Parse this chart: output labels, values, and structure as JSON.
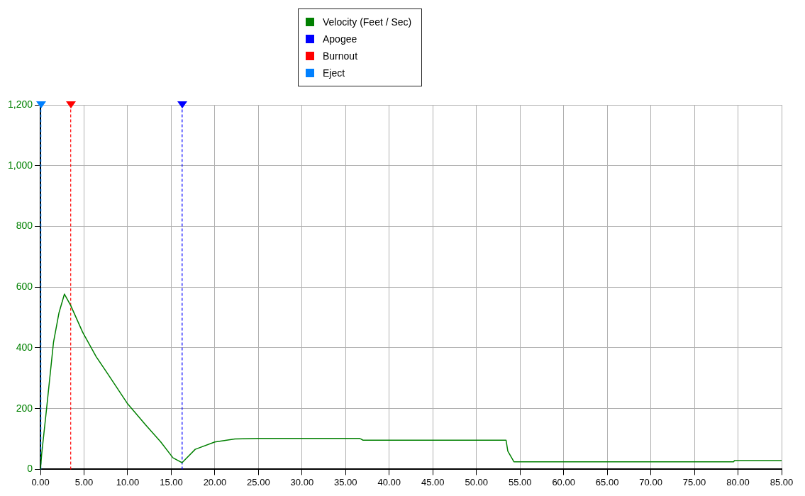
{
  "chart_data": {
    "type": "line",
    "xlim": [
      0,
      85
    ],
    "xticks": [
      {
        "value": 0,
        "label": "0.00"
      },
      {
        "value": 5,
        "label": "5.00"
      },
      {
        "value": 10,
        "label": "10.00"
      },
      {
        "value": 15,
        "label": "15.00"
      },
      {
        "value": 20,
        "label": "20.00"
      },
      {
        "value": 25,
        "label": "25.00"
      },
      {
        "value": 30,
        "label": "30.00"
      },
      {
        "value": 35,
        "label": "35.00"
      },
      {
        "value": 40,
        "label": "40.00"
      },
      {
        "value": 45,
        "label": "45.00"
      },
      {
        "value": 50,
        "label": "50.00"
      },
      {
        "value": 55,
        "label": "55.00"
      },
      {
        "value": 60,
        "label": "60.00"
      },
      {
        "value": 65,
        "label": "65.00"
      },
      {
        "value": 70,
        "label": "70.00"
      },
      {
        "value": 75,
        "label": "75.00"
      },
      {
        "value": 80,
        "label": "80.00"
      },
      {
        "value": 85,
        "label": "85.00"
      }
    ],
    "ylim": [
      0,
      1200
    ],
    "yticks": [
      0,
      200,
      400,
      600,
      800,
      {
        "value": 1000,
        "label": "1,000"
      },
      {
        "value": 1200,
        "label": "1,200"
      }
    ],
    "grid": true,
    "legend": "top",
    "marker": "none",
    "series": [
      {
        "name": "Velocity (Feet / Sec)",
        "color": "#008000",
        "x": [
          0,
          0.14,
          0.71,
          1.5,
          2.13,
          2.75,
          3.46,
          4.85,
          6.39,
          7.8,
          9.94,
          12.07,
          13.8,
          15.2,
          16.24,
          17.75,
          20,
          22.3,
          25,
          30,
          36.6,
          37,
          45,
          53.4,
          53.6,
          54.3,
          60,
          70,
          79.5,
          79.6,
          85
        ],
        "values": [
          0,
          50,
          202,
          419,
          516,
          577,
          540,
          451,
          371,
          311,
          218,
          146,
          90,
          38,
          22,
          66,
          90,
          100,
          102,
          102,
          102,
          96,
          96,
          96,
          60,
          25,
          25,
          25,
          25,
          29,
          29
        ]
      }
    ],
    "ref_lines": [
      {
        "axis": "x",
        "value": 16.25,
        "label": "Apogee",
        "color": "#0000ff",
        "line_style": "dashed"
      },
      {
        "axis": "x",
        "value": 3.47,
        "label": "Burnout",
        "color": "#ff0000",
        "line_style": "dashed"
      },
      {
        "axis": "x",
        "value": 0.05,
        "label": "Eject",
        "color": "#0080ff",
        "line_style": "dashed"
      }
    ]
  }
}
